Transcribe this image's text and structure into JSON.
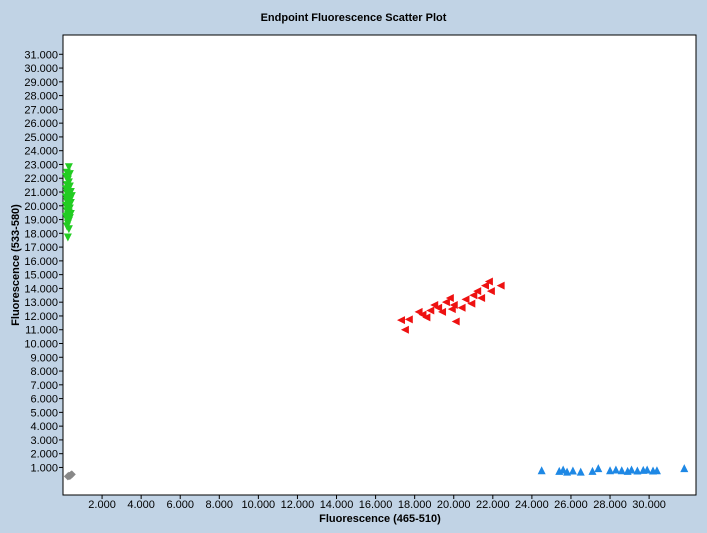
{
  "chart_data": {
    "type": "scatter",
    "title": "Endpoint Fluorescence Scatter Plot",
    "xlabel": "Fluorescence (465-510)",
    "ylabel": "Fluorescence (533-580)",
    "xlim": [
      0,
      32400
    ],
    "ylim": [
      -1000,
      32400
    ],
    "x_ticks": [
      2000,
      4000,
      6000,
      8000,
      10000,
      12000,
      14000,
      16000,
      18000,
      20000,
      22000,
      24000,
      26000,
      28000,
      30000
    ],
    "x_tick_labels": [
      "2.000",
      "4.000",
      "6.000",
      "8.000",
      "10.000",
      "12.000",
      "14.000",
      "16.000",
      "18.000",
      "20.000",
      "22.000",
      "24.000",
      "26.000",
      "28.000",
      "30.000"
    ],
    "y_ticks": [
      1000,
      2000,
      3000,
      4000,
      5000,
      6000,
      7000,
      8000,
      9000,
      10000,
      11000,
      12000,
      13000,
      14000,
      15000,
      16000,
      17000,
      18000,
      19000,
      20000,
      21000,
      22000,
      23000,
      24000,
      25000,
      26000,
      27000,
      28000,
      29000,
      30000,
      31000
    ],
    "y_tick_labels": [
      "1.000",
      "2.000",
      "3.000",
      "4.000",
      "5.000",
      "6.000",
      "7.000",
      "8.000",
      "9.000",
      "10.000",
      "11.000",
      "12.000",
      "13.000",
      "14.000",
      "15.000",
      "16.000",
      "17.000",
      "18.000",
      "19.000",
      "20.000",
      "21.000",
      "22.000",
      "23.000",
      "24.000",
      "25.000",
      "26.000",
      "27.000",
      "28.000",
      "29.000",
      "30.000",
      "31.000"
    ],
    "grid": false,
    "series": [
      {
        "marker": "triangle-down",
        "color": "#22cc22",
        "points": [
          [
            300,
            22800
          ],
          [
            200,
            22400
          ],
          [
            350,
            22300
          ],
          [
            150,
            22100
          ],
          [
            250,
            21900
          ],
          [
            300,
            21700
          ],
          [
            200,
            21500
          ],
          [
            350,
            21400
          ],
          [
            150,
            21200
          ],
          [
            250,
            21100
          ],
          [
            400,
            21000
          ],
          [
            200,
            20900
          ],
          [
            300,
            20800
          ],
          [
            450,
            20700
          ],
          [
            150,
            20600
          ],
          [
            250,
            20500
          ],
          [
            350,
            20400
          ],
          [
            200,
            20300
          ],
          [
            400,
            20200
          ],
          [
            300,
            20100
          ],
          [
            150,
            20000
          ],
          [
            250,
            19900
          ],
          [
            350,
            19800
          ],
          [
            200,
            19600
          ],
          [
            300,
            19500
          ],
          [
            400,
            19400
          ],
          [
            250,
            19300
          ],
          [
            150,
            19200
          ],
          [
            350,
            19100
          ],
          [
            200,
            19000
          ],
          [
            300,
            18900
          ],
          [
            250,
            18700
          ],
          [
            200,
            18500
          ],
          [
            300,
            18300
          ],
          [
            250,
            17700
          ]
        ]
      },
      {
        "marker": "triangle-left",
        "color": "#ee1111",
        "points": [
          [
            17300,
            11700
          ],
          [
            17700,
            11750
          ],
          [
            17500,
            11000
          ],
          [
            18200,
            12300
          ],
          [
            18400,
            12100
          ],
          [
            18600,
            11900
          ],
          [
            18800,
            12400
          ],
          [
            19000,
            12800
          ],
          [
            19200,
            12600
          ],
          [
            19400,
            12300
          ],
          [
            19600,
            13000
          ],
          [
            19800,
            13300
          ],
          [
            19900,
            12500
          ],
          [
            20000,
            12800
          ],
          [
            20100,
            11600
          ],
          [
            20400,
            12600
          ],
          [
            20600,
            13200
          ],
          [
            20900,
            12900
          ],
          [
            21000,
            13500
          ],
          [
            21200,
            13800
          ],
          [
            21400,
            13300
          ],
          [
            21600,
            14200
          ],
          [
            21800,
            14500
          ],
          [
            21900,
            13800
          ],
          [
            22400,
            14200
          ]
        ]
      },
      {
        "marker": "triangle-up",
        "color": "#1e88e5",
        "points": [
          [
            24500,
            800
          ],
          [
            25400,
            750
          ],
          [
            25600,
            850
          ],
          [
            25800,
            700
          ],
          [
            26100,
            780
          ],
          [
            26500,
            700
          ],
          [
            27100,
            750
          ],
          [
            27400,
            950
          ],
          [
            28000,
            800
          ],
          [
            28300,
            850
          ],
          [
            28600,
            800
          ],
          [
            28900,
            750
          ],
          [
            29100,
            850
          ],
          [
            29400,
            780
          ],
          [
            29700,
            820
          ],
          [
            29900,
            850
          ],
          [
            30200,
            780
          ],
          [
            30400,
            800
          ],
          [
            31800,
            950
          ]
        ]
      },
      {
        "marker": "diamond",
        "color": "#888888",
        "points": [
          [
            250,
            350
          ],
          [
            400,
            450
          ],
          [
            300,
            400
          ],
          [
            450,
            500
          ],
          [
            350,
            380
          ]
        ]
      }
    ]
  }
}
